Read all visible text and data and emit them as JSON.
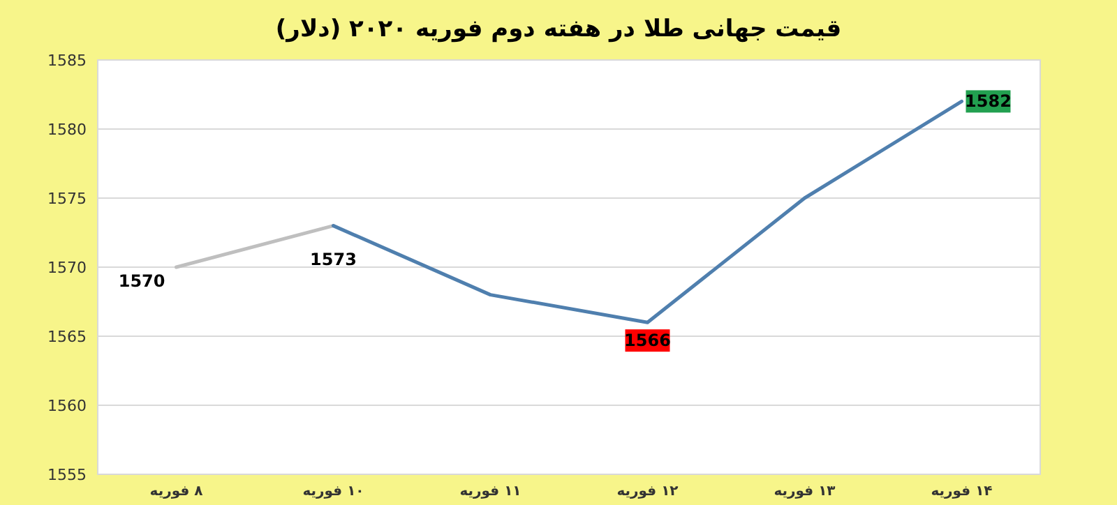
{
  "chart_data": {
    "type": "line",
    "title": "قیمت جهانی طلا در هفته دوم فوریه ۲۰۲۰ (دلار)",
    "categories": [
      "۸ فوریه",
      "۱۰ فوریه",
      "۱۱ فوریه",
      "۱۲ فوریه",
      "۱۳ فوریه",
      "۱۴ فوریه"
    ],
    "series": [
      {
        "color": "#bfbfbf",
        "values": [
          1570,
          1573,
          null,
          null,
          null,
          null
        ],
        "value_labels": [
          "1570",
          "1573",
          null,
          null,
          null,
          null
        ]
      },
      {
        "color": "#4f7fae",
        "values": [
          null,
          1573,
          1568,
          1566,
          1575,
          1582
        ],
        "value_labels": [
          null,
          null,
          null,
          "1566",
          null,
          "1582"
        ],
        "colors": [
          null,
          null,
          null,
          "#ff0000",
          null,
          "#22a050"
        ]
      }
    ],
    "ylim": [
      1555,
      1585
    ],
    "yticks": [
      1555,
      1560,
      1565,
      1570,
      1575,
      1580,
      1585
    ],
    "grid": "y",
    "marker": "none",
    "line_style": "solid"
  }
}
